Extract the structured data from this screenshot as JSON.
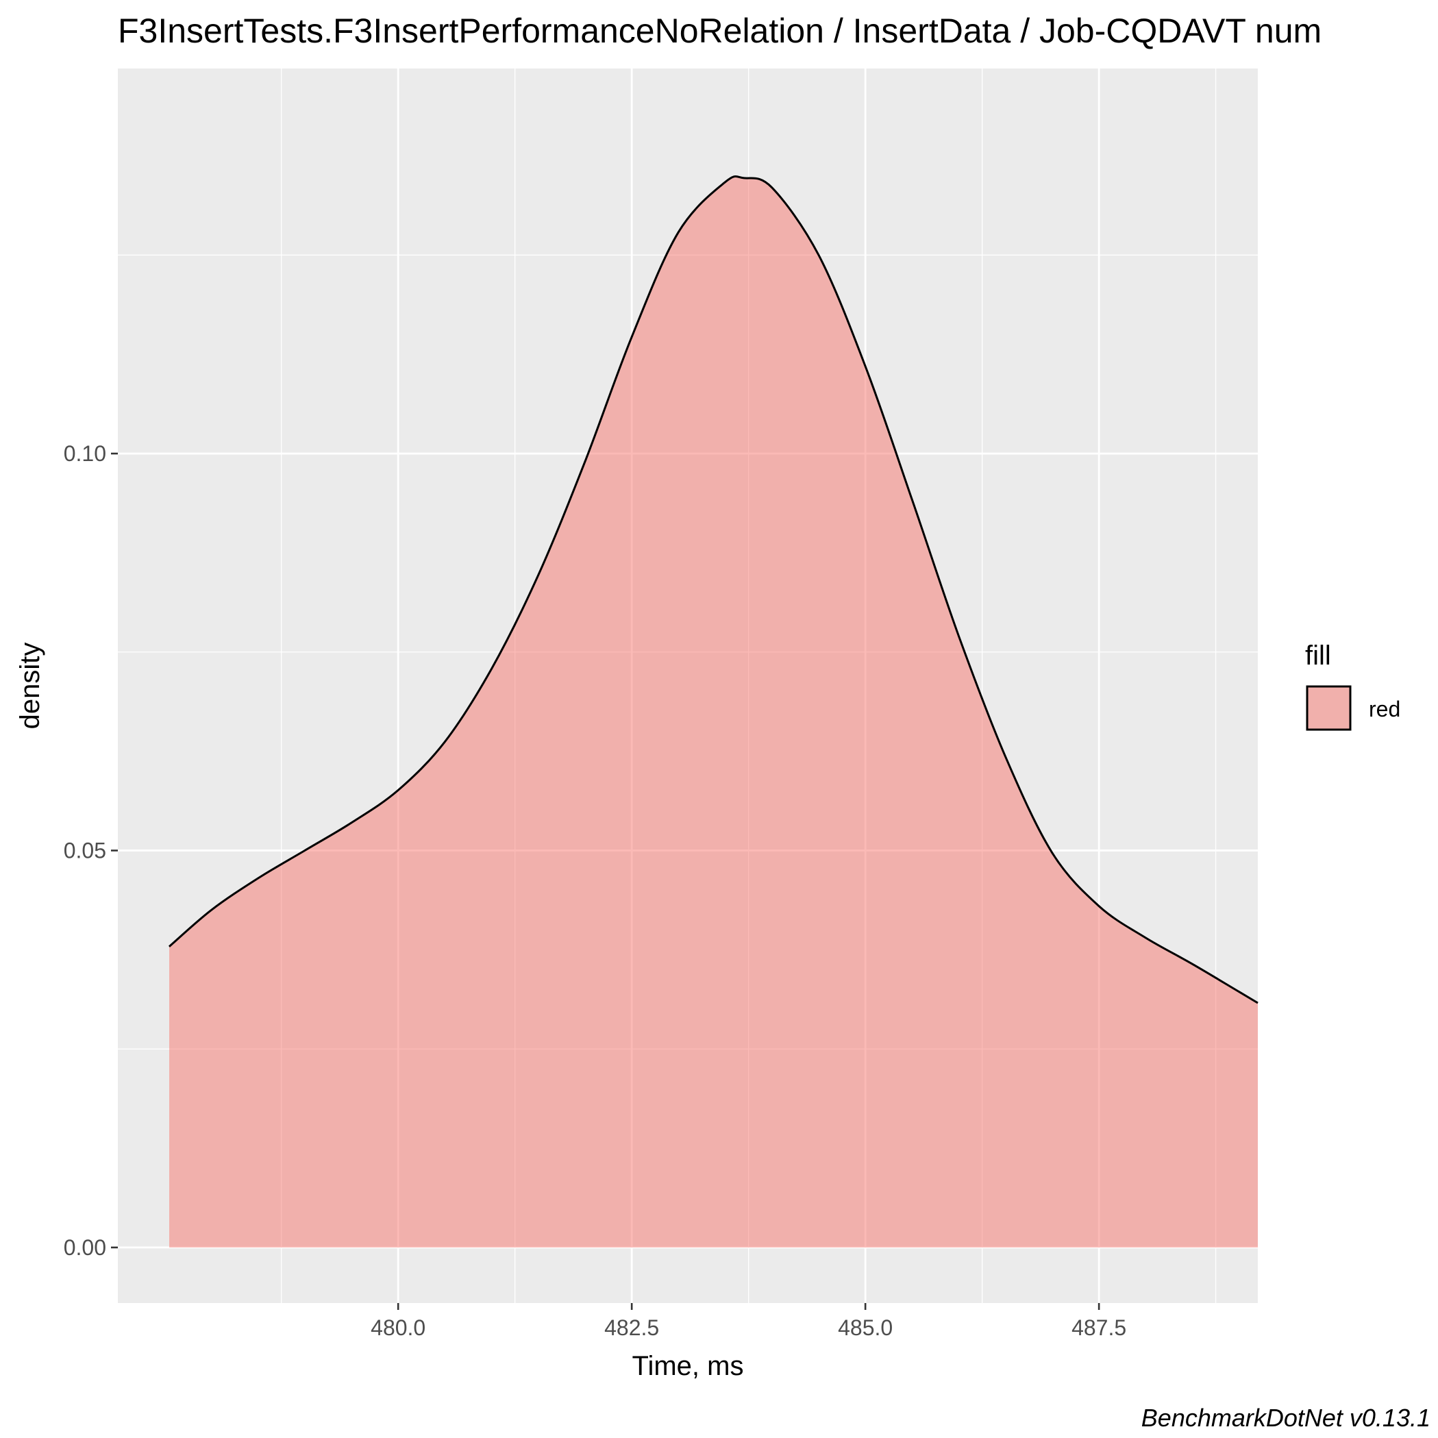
{
  "chart_data": {
    "type": "area",
    "title": "F3InsertTests.F3InsertPerformanceNoRelation / InsertData / Job-CQDAVT num",
    "xlabel": "Time, ms",
    "ylabel": "density",
    "caption": "BenchmarkDotNet v0.13.1",
    "xlim": [
      477.0,
      489.2
    ],
    "ylim": [
      -0.007,
      0.1485
    ],
    "x_ticks": [
      480.0,
      482.5,
      485.0,
      487.5
    ],
    "x_tick_labels": [
      "480.0",
      "482.5",
      "485.0",
      "487.5"
    ],
    "y_ticks": [
      0.0,
      0.05,
      0.1
    ],
    "y_tick_labels": [
      "0.00",
      "0.05",
      "0.10"
    ],
    "grid": true,
    "legend": {
      "title": "fill",
      "placement": "right",
      "entries": [
        {
          "label": "red",
          "color": "#F8766D"
        }
      ]
    },
    "series": [
      {
        "name": "red",
        "fill": "#F8766D",
        "fill_opacity": 0.5,
        "line_color": "#000000",
        "x": [
          477.55,
          478.0,
          478.5,
          479.0,
          479.5,
          480.0,
          480.5,
          481.0,
          481.5,
          482.0,
          482.5,
          483.0,
          483.5,
          483.7,
          484.0,
          484.5,
          485.0,
          485.5,
          486.0,
          486.5,
          487.0,
          487.5,
          488.0,
          488.5,
          489.0,
          489.2
        ],
        "values": [
          0.0379,
          0.0425,
          0.0465,
          0.05,
          0.0535,
          0.0576,
          0.0637,
          0.0729,
          0.0847,
          0.099,
          0.1147,
          0.1279,
          0.1342,
          0.1347,
          0.1335,
          0.125,
          0.111,
          0.0942,
          0.077,
          0.0618,
          0.0497,
          0.043,
          0.039,
          0.0357,
          0.0322,
          0.0308
        ]
      }
    ]
  }
}
